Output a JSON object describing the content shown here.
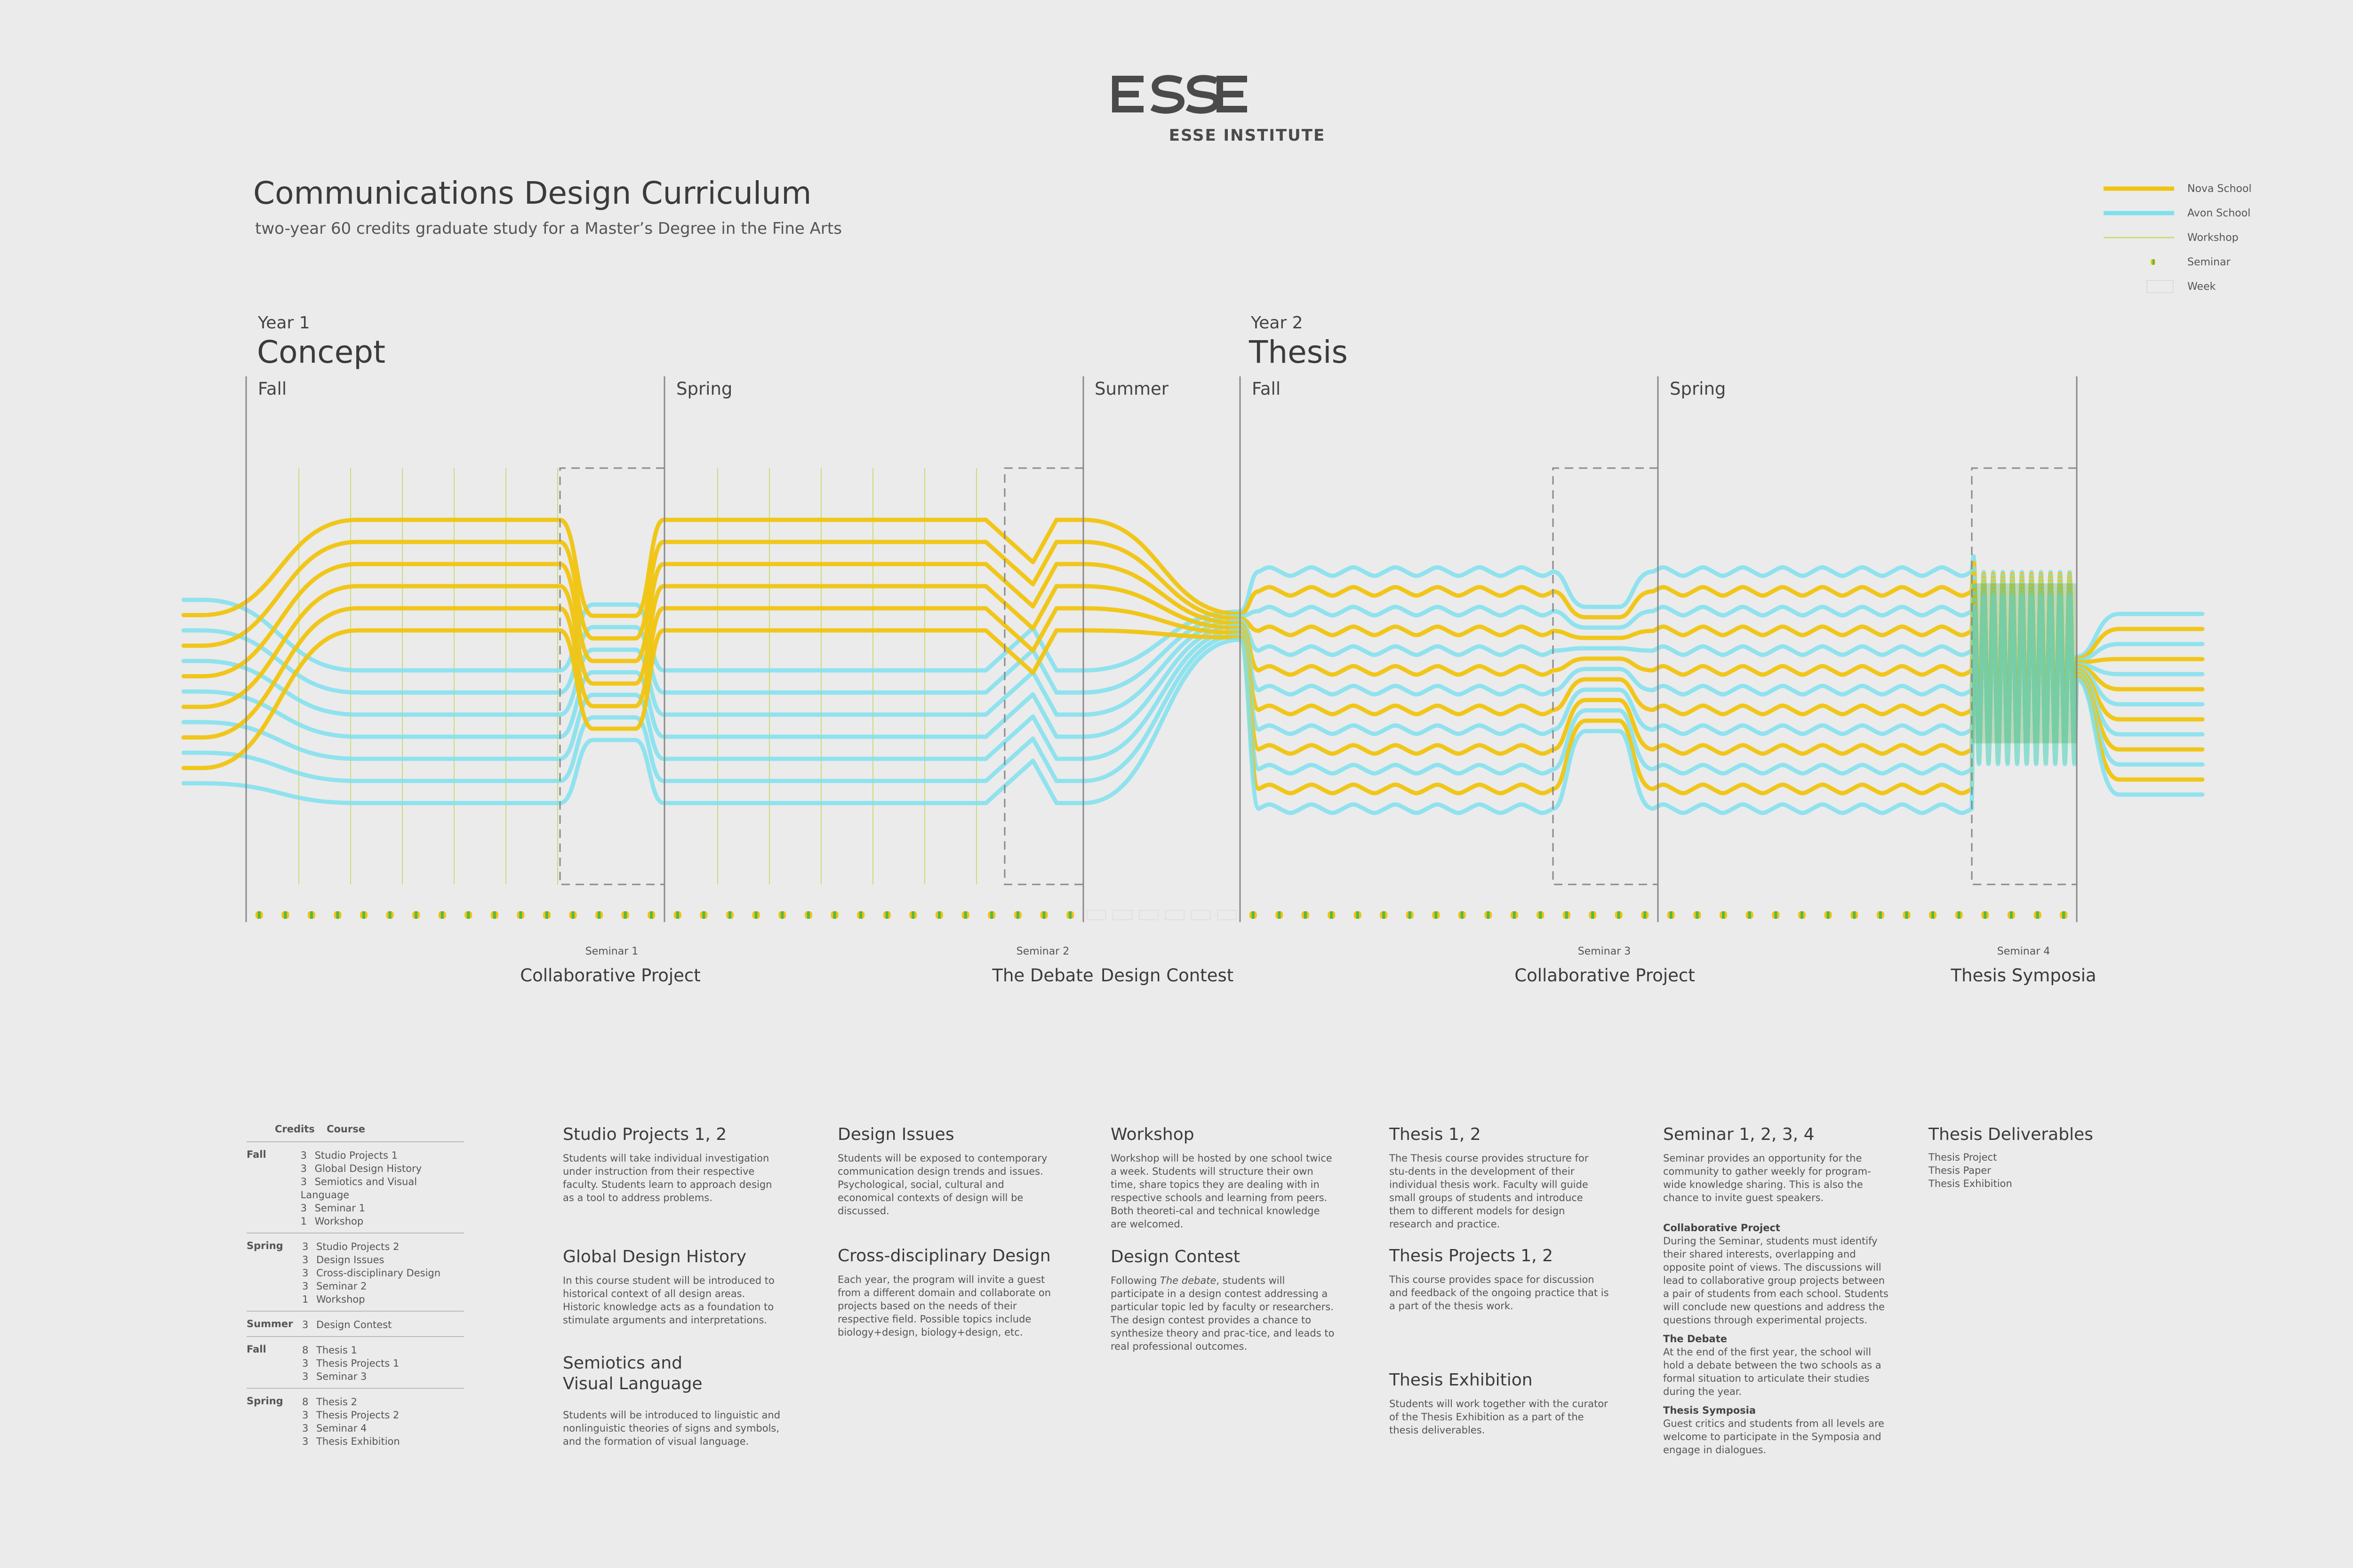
{
  "header": {
    "logo_text": "ESSE INSTITUTE",
    "title": "Communications Design Curriculum",
    "subtitle": "two-year 60 credits graduate study for a Master’s Degree in the Fine Arts"
  },
  "legend": [
    {
      "label": "Nova School",
      "color": "#f1c40f"
    },
    {
      "label": "Avon School",
      "color": "#7fe0ee"
    },
    {
      "label": "Workshop",
      "color": "#c8dc7a"
    },
    {
      "label": "Seminar",
      "color": "#55b848"
    },
    {
      "label": "Week",
      "color": "#dcdcdc"
    }
  ],
  "years": [
    {
      "label": "Year 1",
      "name": "Concept"
    },
    {
      "label": "Year 2",
      "name": "Thesis"
    }
  ],
  "terms": [
    "Fall",
    "Spring",
    "Summer",
    "Fall",
    "Spring"
  ],
  "events": [
    {
      "small": "Seminar 1",
      "name": "Collaborative Project"
    },
    {
      "small": "Seminar 2",
      "name": "The Debate"
    },
    {
      "small": "",
      "name": "Design Contest"
    },
    {
      "small": "Seminar 3",
      "name": "Collaborative Project"
    },
    {
      "small": "Seminar 4",
      "name": "Thesis Symposia"
    }
  ],
  "credits_table": {
    "head_credits": "Credits",
    "head_course": "Course",
    "groups": [
      {
        "term": "Fall",
        "rows": [
          [
            "3",
            "Studio Projects 1"
          ],
          [
            "3",
            "Global Design History"
          ],
          [
            "3",
            "Semiotics and Visual Language"
          ],
          [
            "3",
            "Seminar 1"
          ],
          [
            "1",
            "Workshop"
          ]
        ]
      },
      {
        "term": "Spring",
        "rows": [
          [
            "3",
            "Studio Projects 2"
          ],
          [
            "3",
            "Design Issues"
          ],
          [
            "3",
            "Cross-disciplinary Design"
          ],
          [
            "3",
            "Seminar 2"
          ],
          [
            "1",
            "Workshop"
          ]
        ]
      },
      {
        "term": "Summer",
        "rows": [
          [
            "3",
            "Design Contest"
          ]
        ]
      },
      {
        "term": "Fall",
        "rows": [
          [
            "8",
            "Thesis 1"
          ],
          [
            "3",
            "Thesis Projects 1"
          ],
          [
            "3",
            "Seminar 3"
          ]
        ]
      },
      {
        "term": "Spring",
        "rows": [
          [
            "8",
            "Thesis 2"
          ],
          [
            "3",
            "Thesis Projects 2"
          ],
          [
            "3",
            "Seminar 4"
          ],
          [
            "3",
            "Thesis Exhibition"
          ]
        ]
      }
    ]
  },
  "descriptions": {
    "studio": {
      "title": "Studio Projects 1, 2",
      "body": "Students will take individual investigation under instruction from their respective faculty. Students learn to approach design as a tool to address problems."
    },
    "global": {
      "title": "Global Design History",
      "body": "In this course student  will be introduced to historical context of all design areas. Historic knowledge acts as a foundation to stimulate arguments and interpretations."
    },
    "semiotics": {
      "title": "Semiotics and Visual Language",
      "body": "Students will be introduced to linguistic and nonlinguistic theories of signs and symbols, and the formation of visual language."
    },
    "issues": {
      "title": "Design Issues",
      "body": "Students will be exposed to contemporary communication design trends and issues. Psychological, social, cultural and economical contexts of design will be discussed."
    },
    "cross": {
      "title": "Cross-disciplinary Design",
      "body": "Each year, the program will invite a guest from a different domain and collaborate on projects based on the needs of their respective field. Possible topics include biology+design, biology+design, etc."
    },
    "workshop": {
      "title": "Workshop",
      "body": "Workshop will be hosted by one school twice a week. Students will structure their own time, share topics they are dealing with in respective schools and learning from peers. Both theoreti-cal and technical knowledge are welcomed."
    },
    "contest": {
      "title": "Design Contest",
      "body_pre": "Following ",
      "body_em": "The debate",
      "body_post": ", students will participate in a design contest addressing a particular topic led by faculty or researchers. The design contest provides a chance to synthesize theory and prac-tice, and leads to real professional outcomes."
    },
    "thesis": {
      "title": "Thesis 1, 2",
      "body": "The Thesis course provides structure for stu-dents in the development of their individual thesis work. Faculty will guide small groups of students and introduce them to different models for design research and practice."
    },
    "thesis_projects": {
      "title": "Thesis Projects 1, 2",
      "body": "This course provides space for discussion and feedback of the ongoing  practice that is a part of the thesis work."
    },
    "thesis_exhibition": {
      "title": "Thesis Exhibition",
      "body": "Students will work together with the curator of the Thesis Exhibition as a part of the thesis deliverables."
    },
    "seminar": {
      "title": "Seminar 1, 2, 3, 4",
      "body": "Seminar provides an opportunity for the community to gather weekly for program-wide knowledge sharing. This is also the chance to invite guest speakers.",
      "collab_title": "Collaborative Project",
      "collab_body": "During the Seminar, students must identify their shared interests, overlapping and opposite point of views. The discussions will lead to collaborative group projects between a pair of students from each school. Students will conclude new questions and address the questions through experimental projects.",
      "debate_title": "The Debate",
      "debate_body": "At the end of the first year, the school will hold a debate between the two schools as a formal situation to articulate their studies during the year.",
      "symposia_title": "Thesis Symposia",
      "symposia_body": "Guest critics and students from all levels are welcome to participate in the Symposia and engage in dialogues."
    },
    "deliverables": {
      "title": "Thesis Deliverables",
      "items": [
        "Thesis Project",
        "Thesis Paper",
        "Thesis Exhibition"
      ]
    }
  },
  "colors": {
    "nova": "#f1c40f",
    "avon": "#7fe0ee",
    "seminar_dot": "#55b848",
    "divider": "#8a8a8a",
    "background": "#ebebeb"
  }
}
